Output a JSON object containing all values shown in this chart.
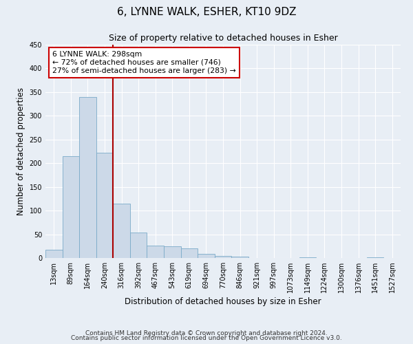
{
  "title": "6, LYNNE WALK, ESHER, KT10 9DZ",
  "subtitle": "Size of property relative to detached houses in Esher",
  "xlabel": "Distribution of detached houses by size in Esher",
  "ylabel": "Number of detached properties",
  "categories": [
    "13sqm",
    "89sqm",
    "164sqm",
    "240sqm",
    "316sqm",
    "392sqm",
    "467sqm",
    "543sqm",
    "619sqm",
    "694sqm",
    "770sqm",
    "846sqm",
    "921sqm",
    "997sqm",
    "1073sqm",
    "1149sqm",
    "1224sqm",
    "1300sqm",
    "1376sqm",
    "1451sqm",
    "1527sqm"
  ],
  "values": [
    18,
    215,
    340,
    222,
    114,
    53,
    26,
    24,
    20,
    9,
    5,
    3,
    0,
    0,
    0,
    2,
    0,
    0,
    0,
    2,
    0
  ],
  "bar_color": "#ccd9e8",
  "bar_edge_color": "#7aaac8",
  "vline_x": 4,
  "vline_color": "#aa0000",
  "annotation_text": "6 LYNNE WALK: 298sqm\n← 72% of detached houses are smaller (746)\n27% of semi-detached houses are larger (283) →",
  "annotation_box_color": "#ffffff",
  "annotation_box_edge_color": "#cc0000",
  "ylim": [
    0,
    450
  ],
  "yticks": [
    0,
    50,
    100,
    150,
    200,
    250,
    300,
    350,
    400,
    450
  ],
  "footer_line1": "Contains HM Land Registry data © Crown copyright and database right 2024.",
  "footer_line2": "Contains public sector information licensed under the Open Government Licence v3.0.",
  "background_color": "#e8eef5",
  "plot_background": "#e8eef5",
  "grid_color": "#ffffff",
  "title_fontsize": 11,
  "subtitle_fontsize": 9,
  "label_fontsize": 8.5,
  "tick_fontsize": 7,
  "footer_fontsize": 6.5,
  "annot_fontsize": 7.8
}
